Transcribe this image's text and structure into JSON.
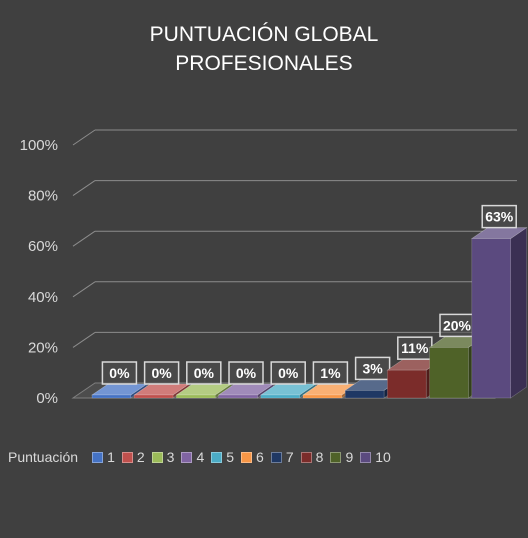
{
  "chart_data": {
    "type": "bar",
    "title": [
      "PUNTUACIÓN GLOBAL",
      "PROFESIONALES"
    ],
    "xlabel": "",
    "ylabel": "",
    "ylim": [
      0,
      100
    ],
    "y_ticks": [
      "0%",
      "20%",
      "40%",
      "60%",
      "80%",
      "100%"
    ],
    "grid": true,
    "legend_title": "Puntuación",
    "legend_position": "bottom",
    "categories": [
      "1",
      "2",
      "3",
      "4",
      "5",
      "6",
      "7",
      "8",
      "9",
      "10"
    ],
    "values": [
      0,
      0,
      0,
      0,
      0,
      1,
      3,
      11,
      20,
      63
    ],
    "data_labels": [
      "0%",
      "0%",
      "0%",
      "0%",
      "0%",
      "1%",
      "3%",
      "11%",
      "20%",
      "63%"
    ],
    "colors": [
      "#4472C4",
      "#C0504D",
      "#9BBB59",
      "#8064A2",
      "#4BACC6",
      "#F79646",
      "#1F3864",
      "#7B2C2A",
      "#4F6228",
      "#5B4A7F"
    ]
  }
}
